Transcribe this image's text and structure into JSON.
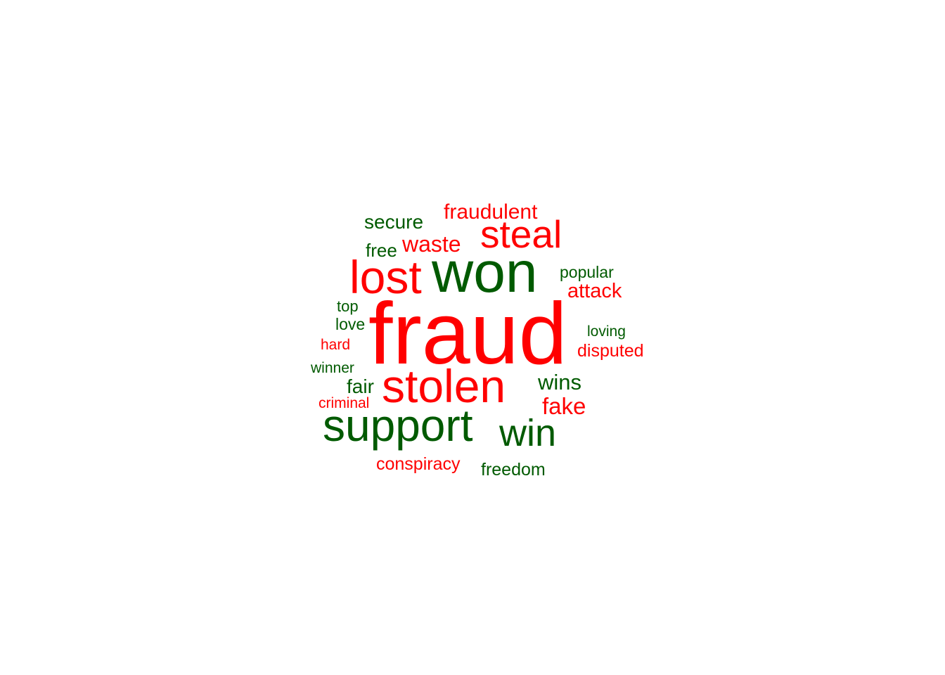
{
  "colors": {
    "negative": "#ff0000",
    "positive": "#005a00"
  },
  "words": [
    {
      "text": "fraud",
      "sentiment": "negative"
    },
    {
      "text": "won",
      "sentiment": "positive"
    },
    {
      "text": "support",
      "sentiment": "positive"
    },
    {
      "text": "stolen",
      "sentiment": "negative"
    },
    {
      "text": "lost",
      "sentiment": "negative"
    },
    {
      "text": "steal",
      "sentiment": "negative"
    },
    {
      "text": "win",
      "sentiment": "positive"
    },
    {
      "text": "waste",
      "sentiment": "negative"
    },
    {
      "text": "fraudulent",
      "sentiment": "negative"
    },
    {
      "text": "secure",
      "sentiment": "positive"
    },
    {
      "text": "free",
      "sentiment": "positive"
    },
    {
      "text": "popular",
      "sentiment": "positive"
    },
    {
      "text": "attack",
      "sentiment": "negative"
    },
    {
      "text": "top",
      "sentiment": "positive"
    },
    {
      "text": "love",
      "sentiment": "positive"
    },
    {
      "text": "loving",
      "sentiment": "positive"
    },
    {
      "text": "hard",
      "sentiment": "negative"
    },
    {
      "text": "disputed",
      "sentiment": "negative"
    },
    {
      "text": "winner",
      "sentiment": "positive"
    },
    {
      "text": "fair",
      "sentiment": "positive"
    },
    {
      "text": "wins",
      "sentiment": "positive"
    },
    {
      "text": "criminal",
      "sentiment": "negative"
    },
    {
      "text": "fake",
      "sentiment": "negative"
    },
    {
      "text": "conspiracy",
      "sentiment": "negative"
    },
    {
      "text": "freedom",
      "sentiment": "positive"
    }
  ]
}
